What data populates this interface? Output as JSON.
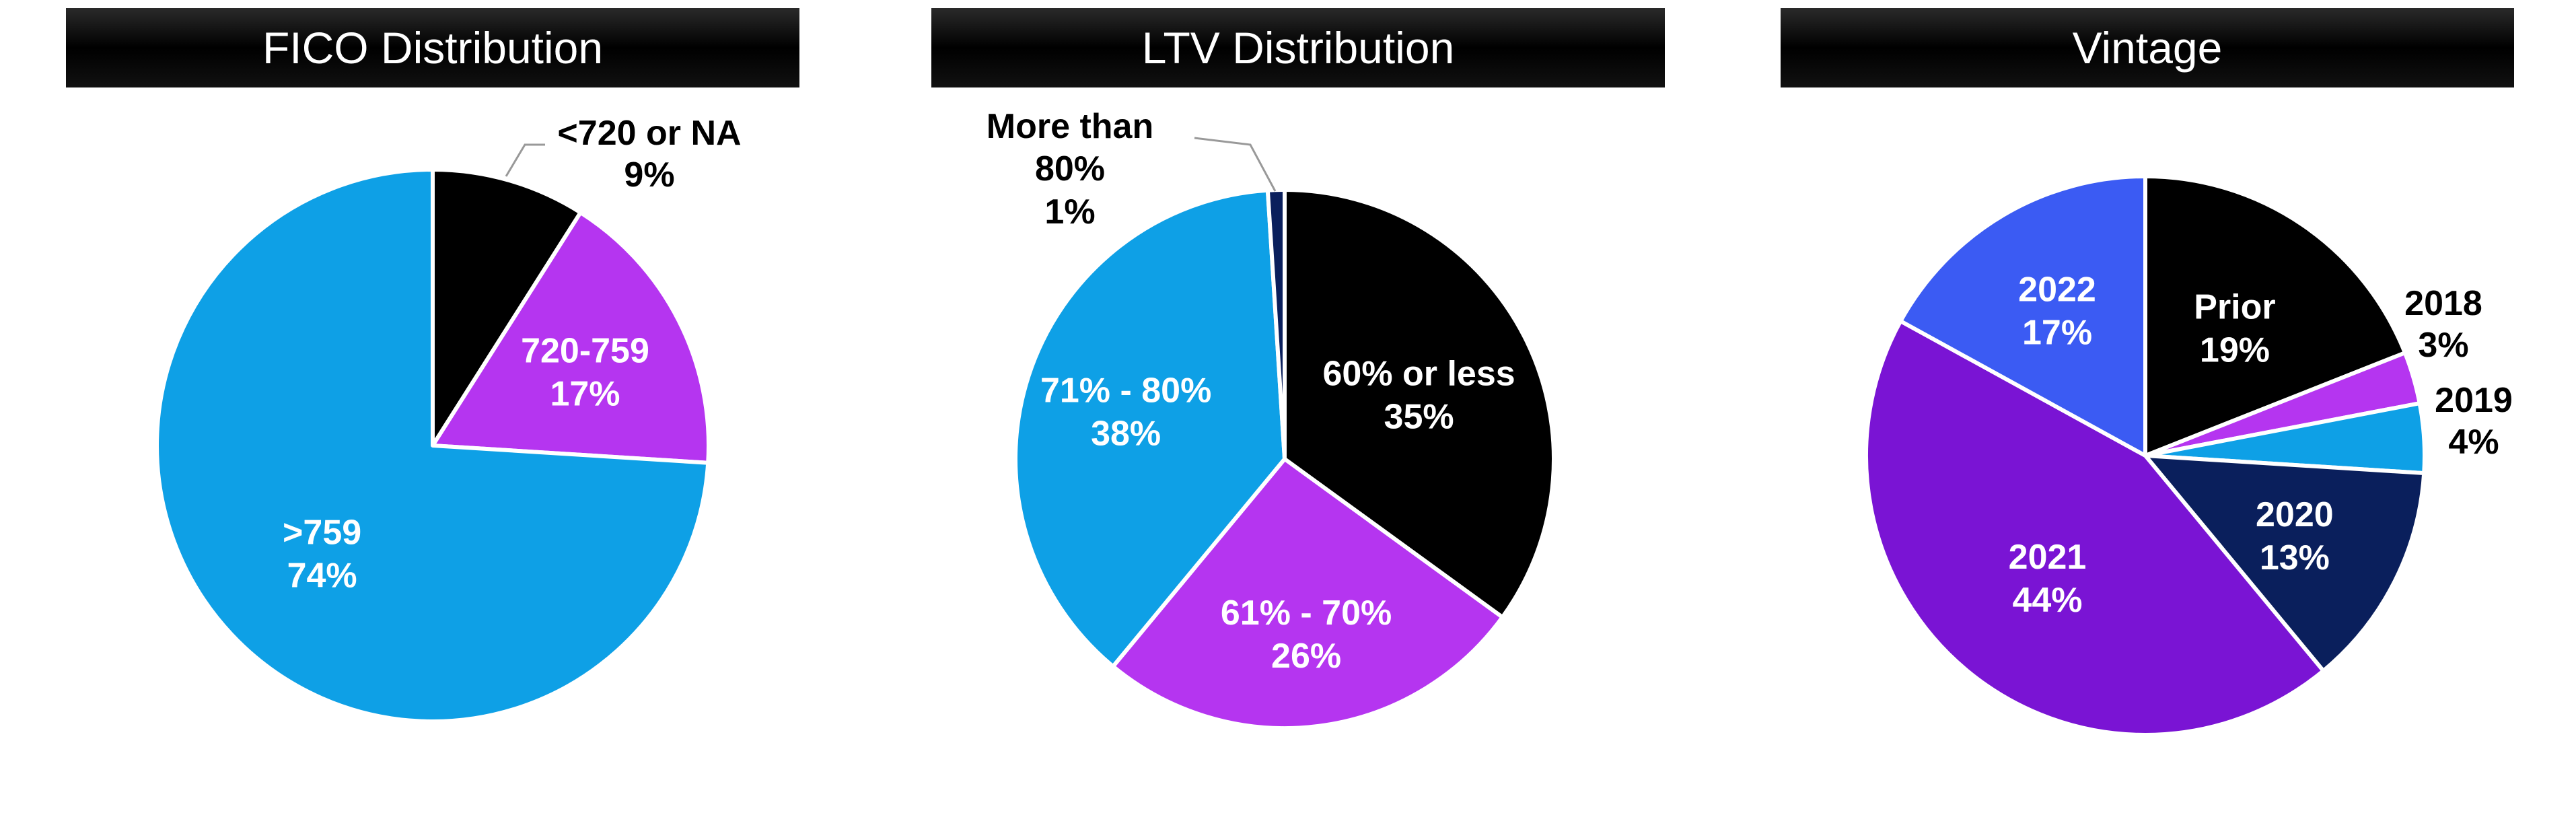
{
  "colors": {
    "black": "#000000",
    "purple": "#B535F0",
    "sky_blue": "#0EA0E6",
    "navy": "#0A1F5C",
    "royal_blue": "#3B5BF3",
    "violet": "#7A14D4",
    "leader": "#999999",
    "white": "#FFFFFF"
  },
  "chart_data": [
    {
      "type": "pie",
      "title": "FICO Distribution",
      "slices": [
        {
          "label": "<720 or NA",
          "value": 9,
          "value_label": "9%",
          "color": "#000000",
          "text_color": "#000000",
          "label_outside": true
        },
        {
          "label": "720-759",
          "value": 17,
          "value_label": "17%",
          "color": "#B535F0",
          "text_color": "#FFFFFF"
        },
        {
          "label": ">759",
          "value": 74,
          "value_label": "74%",
          "color": "#0EA0E6",
          "text_color": "#FFFFFF"
        }
      ]
    },
    {
      "type": "pie",
      "title": "LTV Distribution",
      "slices": [
        {
          "label": "60% or less",
          "value": 35,
          "value_label": "35%",
          "color": "#000000",
          "text_color": "#FFFFFF"
        },
        {
          "label": "61% - 70%",
          "value": 26,
          "value_label": "26%",
          "color": "#B535F0",
          "text_color": "#FFFFFF"
        },
        {
          "label": "71% - 80%",
          "value": 38,
          "value_label": "38%",
          "color": "#0EA0E6",
          "text_color": "#FFFFFF"
        },
        {
          "label": "More than 80%",
          "value": 1,
          "value_label": "1%",
          "color": "#0A1F5C",
          "text_color": "#000000",
          "label_outside": true
        }
      ]
    },
    {
      "type": "pie",
      "title": "Vintage",
      "slices": [
        {
          "label": "Prior",
          "value": 19,
          "value_label": "19%",
          "color": "#000000",
          "text_color": "#FFFFFF"
        },
        {
          "label": "2018",
          "value": 3,
          "value_label": "3%",
          "color": "#B535F0",
          "text_color": "#000000",
          "label_outside": true
        },
        {
          "label": "2019",
          "value": 4,
          "value_label": "4%",
          "color": "#0EA0E6",
          "text_color": "#000000",
          "label_outside": true
        },
        {
          "label": "2020",
          "value": 13,
          "value_label": "13%",
          "color": "#0A1F5C",
          "text_color": "#FFFFFF"
        },
        {
          "label": "2021",
          "value": 44,
          "value_label": "44%",
          "color": "#7A14D4",
          "text_color": "#FFFFFF"
        },
        {
          "label": "2022",
          "value": 17,
          "value_label": "17%",
          "color": "#3B5BF3",
          "text_color": "#FFFFFF"
        }
      ]
    }
  ]
}
